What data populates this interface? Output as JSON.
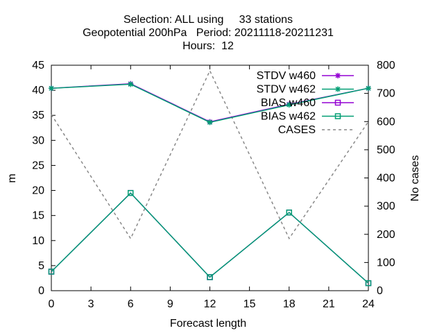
{
  "chart_data": {
    "type": "line",
    "title_lines": [
      "Selection: ALL using     33 stations",
      "Geopotential 200hPa   Period: 20211118-20211231",
      "Hours:  12"
    ],
    "xlabel": "Forecast length",
    "ylabel": "m",
    "y2label": "No cases",
    "xlim": [
      0,
      24
    ],
    "ylim": [
      0,
      45
    ],
    "y2lim": [
      0,
      800
    ],
    "xticks": [
      0,
      3,
      6,
      9,
      12,
      15,
      18,
      21,
      24
    ],
    "yticks": [
      0,
      5,
      10,
      15,
      20,
      25,
      30,
      35,
      40,
      45
    ],
    "y2ticks": [
      0,
      100,
      200,
      300,
      400,
      500,
      600,
      700,
      800
    ],
    "grid": false,
    "legend_position": "top-right",
    "x": [
      0,
      6,
      12,
      18,
      24
    ],
    "series": [
      {
        "name": "STDV w460",
        "axis": "y",
        "color": "#9400d3",
        "marker": "star",
        "dash": "",
        "values": [
          40.4,
          41.3,
          33.7,
          37.2,
          40.4
        ]
      },
      {
        "name": "STDV w462",
        "axis": "y",
        "color": "#009e73",
        "marker": "star",
        "dash": "",
        "values": [
          40.4,
          41.2,
          33.6,
          37.1,
          40.4
        ]
      },
      {
        "name": "BIAS w460",
        "axis": "y",
        "color": "#9400d3",
        "marker": "square",
        "dash": "",
        "values": [
          3.8,
          19.5,
          2.7,
          15.6,
          1.5
        ]
      },
      {
        "name": "BIAS w462",
        "axis": "y",
        "color": "#009e73",
        "marker": "square",
        "dash": "",
        "values": [
          3.8,
          19.5,
          2.7,
          15.6,
          1.5
        ]
      },
      {
        "name": "CASES",
        "axis": "y2",
        "color": "#888888",
        "marker": "none",
        "dash": "4,4",
        "values": [
          625,
          185,
          780,
          185,
          600
        ]
      }
    ]
  }
}
